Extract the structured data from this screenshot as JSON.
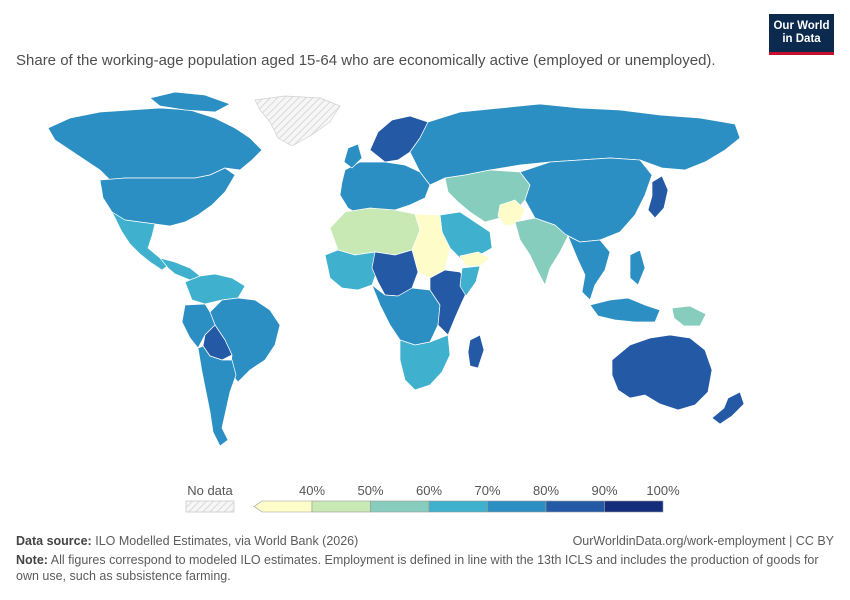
{
  "logo": {
    "line1": "Our World",
    "line2": "in Data"
  },
  "subtitle": "Share of the working-age population aged 15-64 who are economically active (employed or unemployed).",
  "legend": {
    "no_data_label": "No data",
    "ticks": [
      "40%",
      "50%",
      "60%",
      "70%",
      "80%",
      "90%",
      "100%"
    ],
    "bins": [
      {
        "range": "<40%",
        "color": "#fefcc8"
      },
      {
        "range": "40-50%",
        "color": "#c8e8b4"
      },
      {
        "range": "50-60%",
        "color": "#86cdbd"
      },
      {
        "range": "60-70%",
        "color": "#3fb0cd"
      },
      {
        "range": "70-80%",
        "color": "#2c8fc3"
      },
      {
        "range": "80-90%",
        "color": "#2459a6"
      },
      {
        "range": "90-100%",
        "color": "#132c7c"
      }
    ]
  },
  "footer": {
    "source_label": "Data source:",
    "source_text": "ILO Modelled Estimates, via World Bank (2026)",
    "url_text": "OurWorldinData.org/work-employment | CC BY",
    "note_label": "Note:",
    "note_text": "All figures correspond to modeled ILO estimates. Employment is defined in line with the 13th ICLS and includes the production of goods for own use, such as subsistence farming."
  },
  "map_regions": [
    {
      "name": "canada",
      "color": "#2c8fc3"
    },
    {
      "name": "united-states",
      "color": "#2c8fc3"
    },
    {
      "name": "greenland",
      "color": "no-data"
    },
    {
      "name": "mexico",
      "color": "#3fb0cd"
    },
    {
      "name": "central-america",
      "color": "#3fb0cd"
    },
    {
      "name": "colombia-venezuela",
      "color": "#3fb0cd"
    },
    {
      "name": "brazil",
      "color": "#2c8fc3"
    },
    {
      "name": "peru",
      "color": "#2c8fc3"
    },
    {
      "name": "bolivia",
      "color": "#2459a6"
    },
    {
      "name": "argentina-chile",
      "color": "#2c8fc3"
    },
    {
      "name": "scandinavia",
      "color": "#2459a6"
    },
    {
      "name": "western-europe",
      "color": "#2c8fc3"
    },
    {
      "name": "russia",
      "color": "#2c8fc3"
    },
    {
      "name": "north-africa",
      "color": "#c8e8b4"
    },
    {
      "name": "egypt-sudan",
      "color": "#fefcc8"
    },
    {
      "name": "sahel",
      "color": "#2459a6"
    },
    {
      "name": "west-africa",
      "color": "#3fb0cd"
    },
    {
      "name": "central-africa",
      "color": "#2c8fc3"
    },
    {
      "name": "east-africa",
      "color": "#2459a6"
    },
    {
      "name": "southern-africa",
      "color": "#3fb0cd"
    },
    {
      "name": "madagascar",
      "color": "#2459a6"
    },
    {
      "name": "arabia",
      "color": "#3fb0cd"
    },
    {
      "name": "yemen",
      "color": "#fefcc8"
    },
    {
      "name": "iran-central-asia",
      "color": "#86cdbd"
    },
    {
      "name": "afghanistan",
      "color": "#fefcc8"
    },
    {
      "name": "india",
      "color": "#86cdbd"
    },
    {
      "name": "china",
      "color": "#2c8fc3"
    },
    {
      "name": "japan",
      "color": "#2459a6"
    },
    {
      "name": "southeast-asia",
      "color": "#2c8fc3"
    },
    {
      "name": "indonesia",
      "color": "#2c8fc3"
    },
    {
      "name": "papua-new-guinea",
      "color": "#86cdbd"
    },
    {
      "name": "australia",
      "color": "#2459a6"
    },
    {
      "name": "new-zealand",
      "color": "#2459a6"
    }
  ]
}
